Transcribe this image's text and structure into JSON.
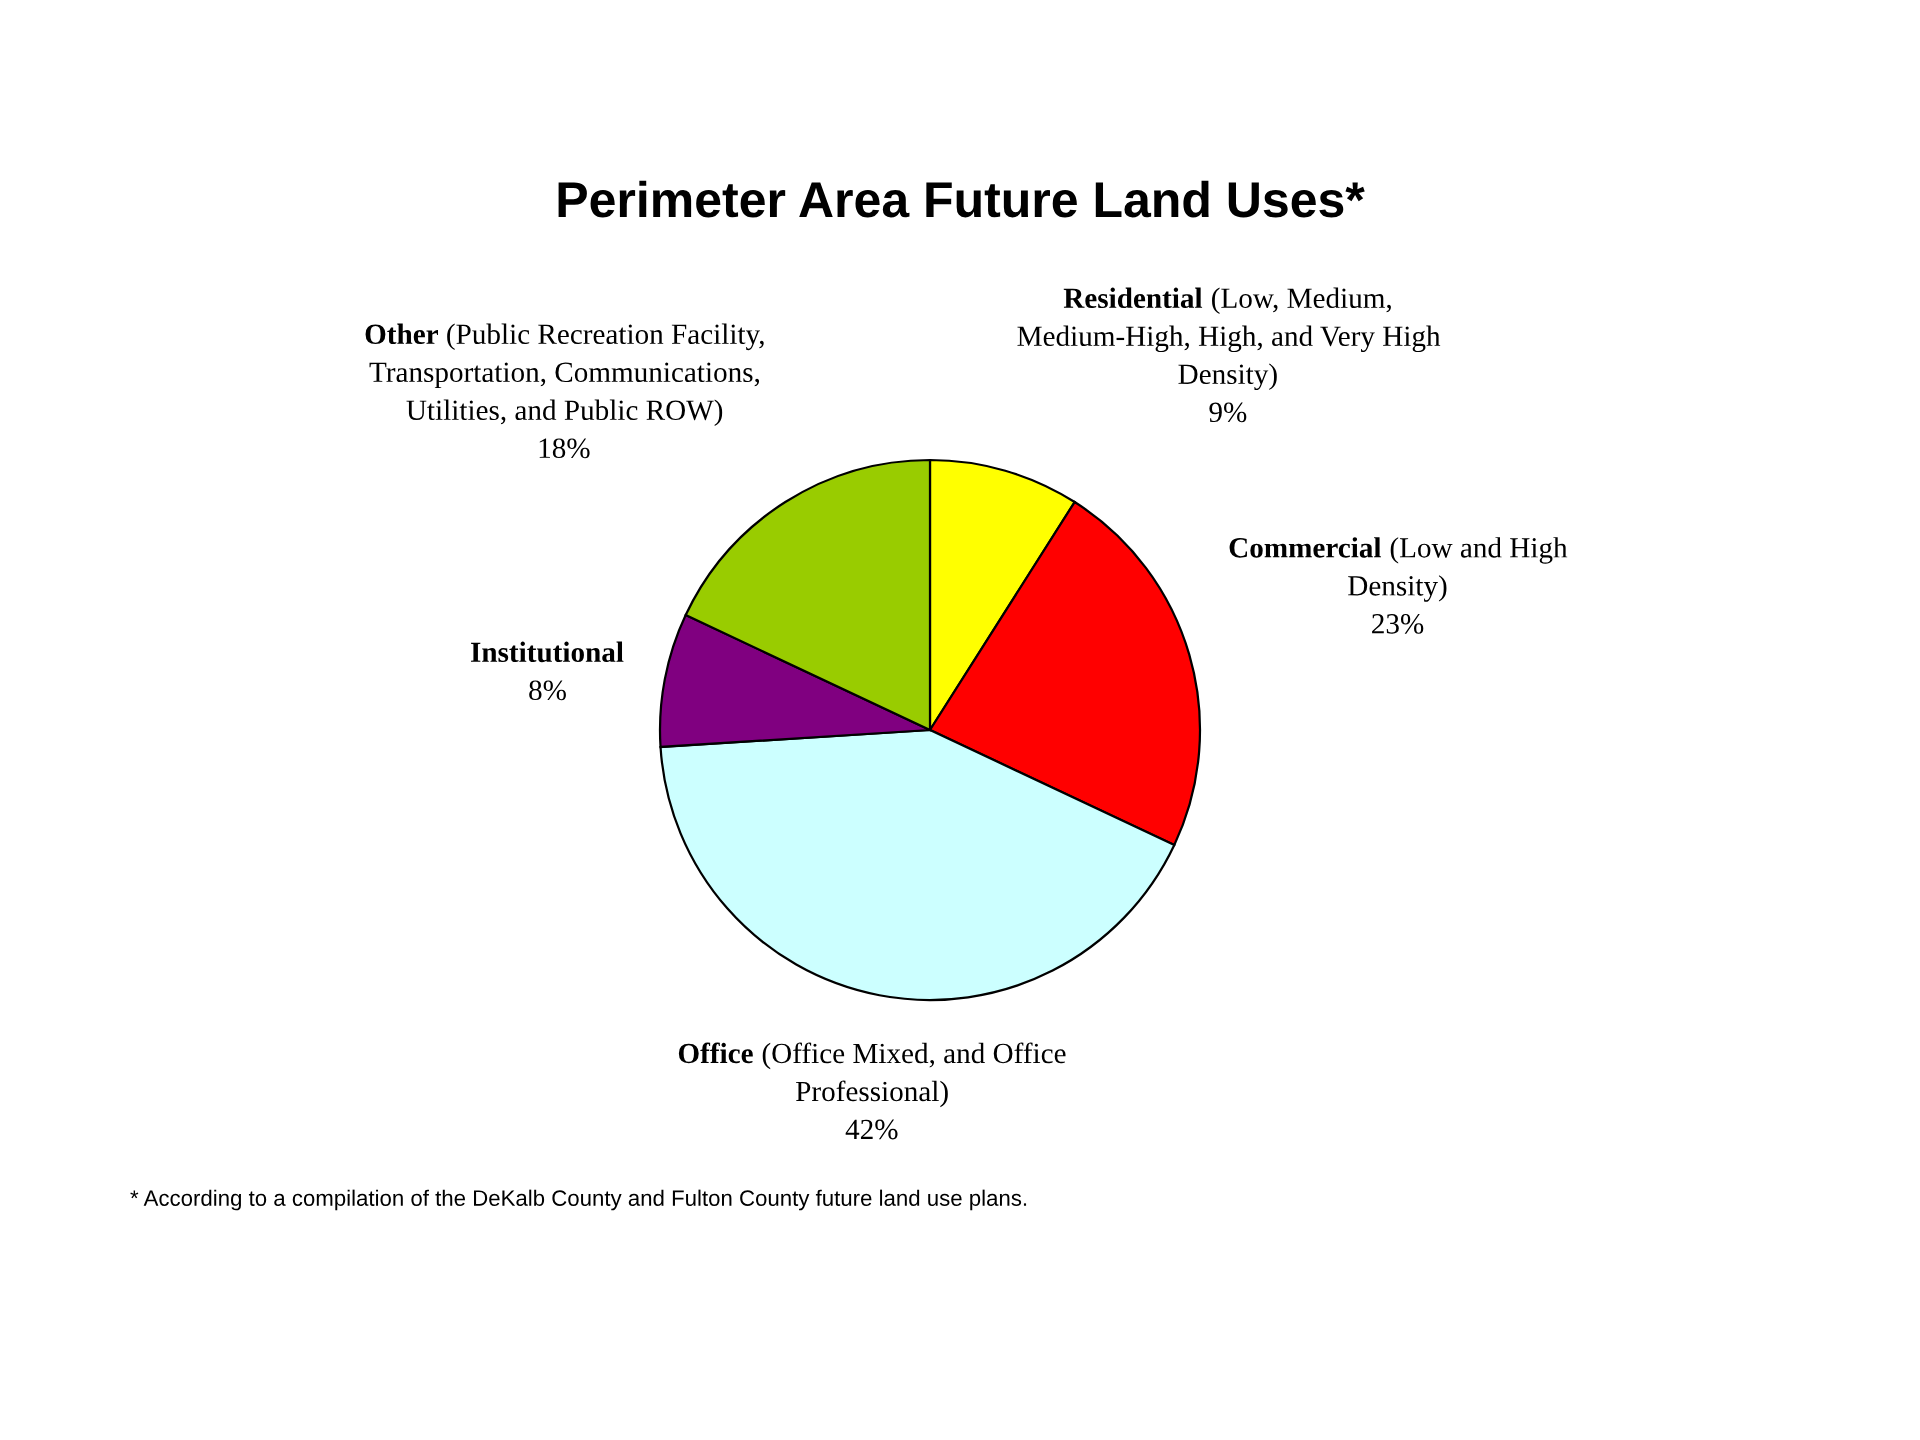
{
  "chart_data": {
    "type": "pie",
    "title": "Perimeter Area Future Land Uses*",
    "categories": [
      "Residential (Low, Medium, Medium-High, High, and Very High Density)",
      "Commercial (Low and High Density)",
      "Office (Office Mixed, and Office Professional)",
      "Institutional",
      "Other (Public Recreation Facility, Transportation, Communications, Utilities, and Public ROW)"
    ],
    "values": [
      9,
      23,
      42,
      8,
      18
    ],
    "colors": [
      "#ffff00",
      "#ff0000",
      "#ccffff",
      "#800080",
      "#99cc00"
    ],
    "value_labels": [
      "9%",
      "23%",
      "42%",
      "8%",
      "18%"
    ],
    "annotations": [
      "* According to a compilation of the DeKalb County and Fulton County future land use plans."
    ]
  }
}
